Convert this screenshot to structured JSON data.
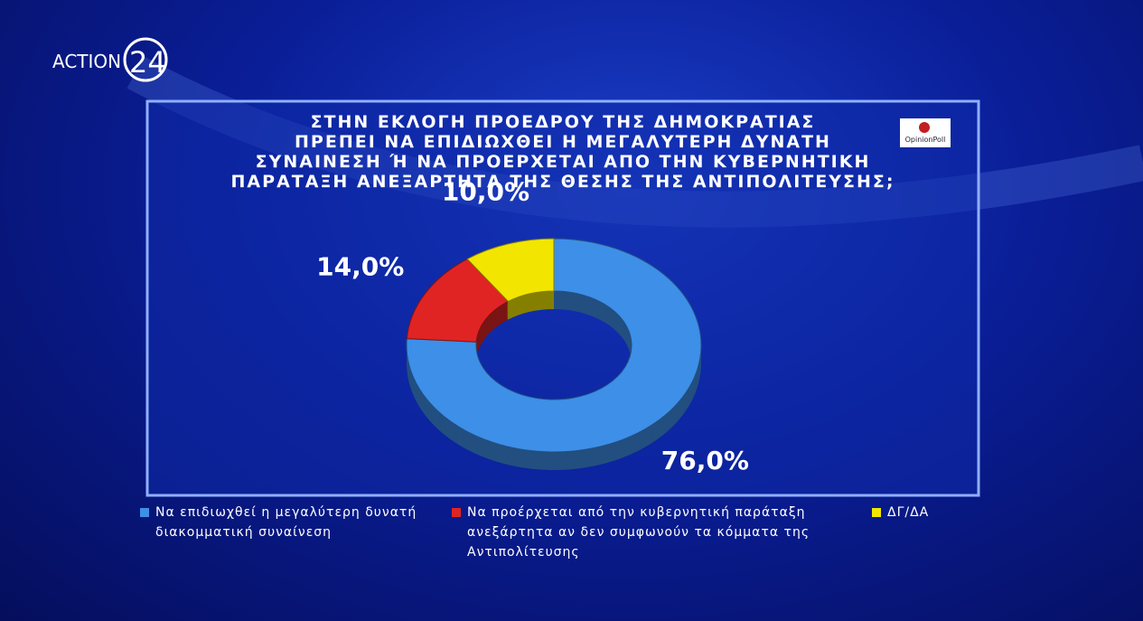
{
  "logo": {
    "text": "ACTION",
    "number": "24"
  },
  "source": "OpinionPoll",
  "chart_data": {
    "type": "pie",
    "title": "ΣΤΗΝ ΕΚΛΟΓΗ ΠΡΟΕΔΡΟΥ ΤΗΣ ΔΗΜΟΚΡΑΤΙΑΣ\nΠΡΕΠΕΙ ΝΑ ΕΠΙΔΙΩΧΘΕΙ Η ΜΕΓΑΛΥΤΕΡΗ ΔΥΝΑΤΗ\nΣΥΝΑΙΝΕΣΗ Ή ΝΑ ΠΡΟΕΡΧΕΤΑΙ ΑΠΟ ΤΗΝ ΚΥΒΕΡΝΗΤΙΚΗ\nΠΑΡΑΤΑΞΗ ΑΝΕΞΑΡΤΗΤΑ ΤΗΣ ΘΕΣΗΣ ΤΗΣ ΑΝΤΙΠΟΛΙΤΕΥΣΗΣ;",
    "categories": [
      "Να επιδιωχθεί η μεγαλύτερη δυνατή διακομματική συναίνεση",
      "Να προέρχεται από την κυβερνητική παράταξη ανεξάρτητα αν δεν συμφωνούν τα κόμματα της Αντιπολίτευσης",
      "ΔΓ/ΔΑ"
    ],
    "values": [
      76,
      14,
      10
    ],
    "value_labels": [
      "76,0%",
      "14,0%",
      "10,0%"
    ],
    "colors": [
      "#3d8fe8",
      "#e02424",
      "#f2e600"
    ],
    "donut": true
  }
}
